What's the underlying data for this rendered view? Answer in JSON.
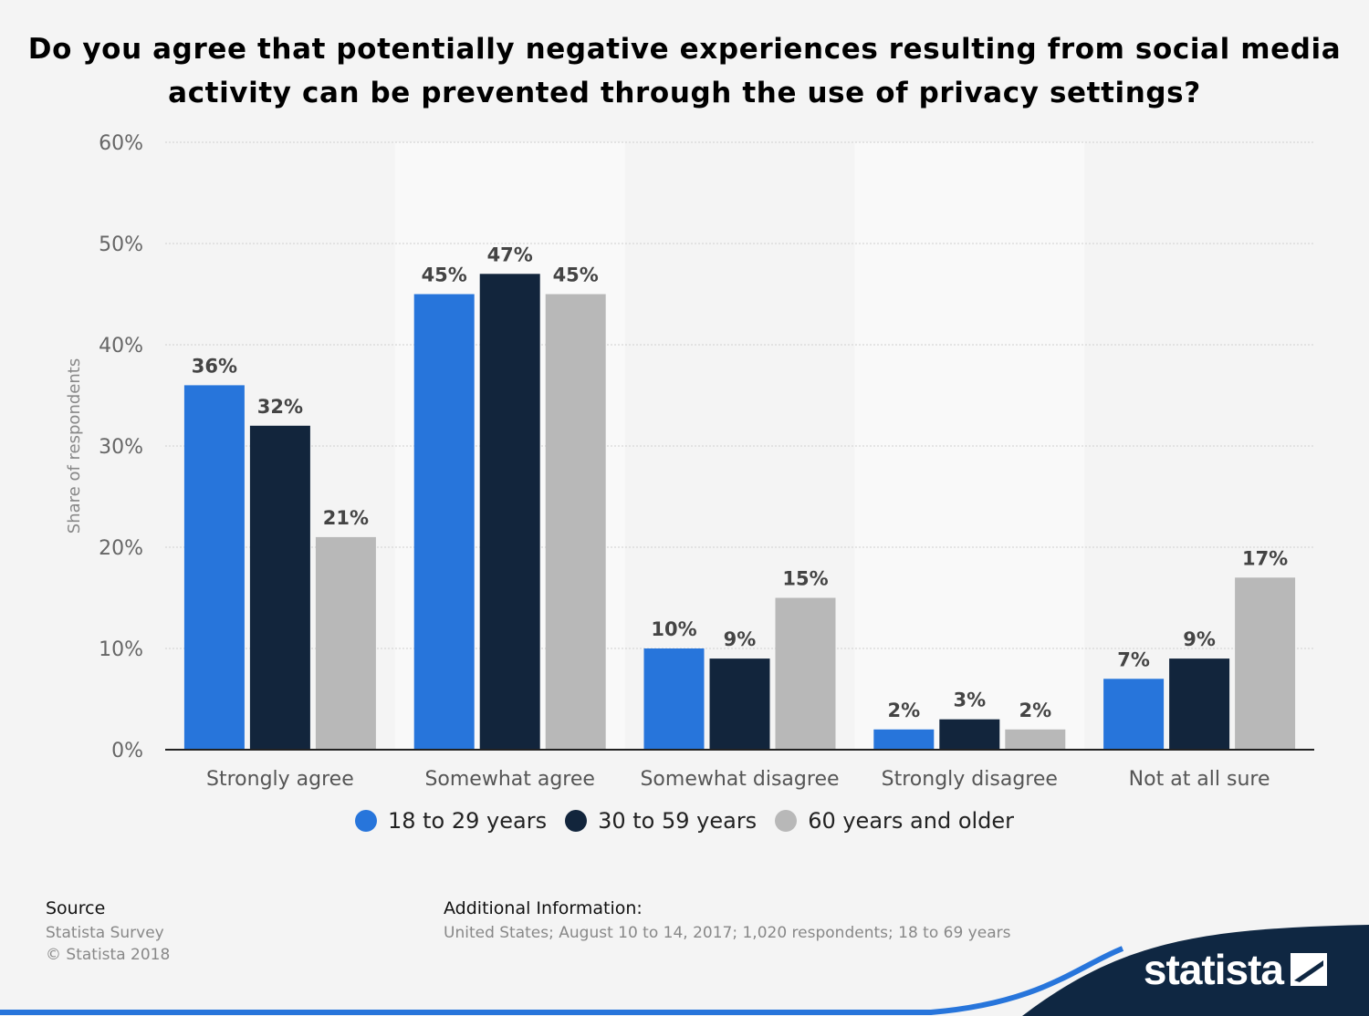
{
  "chart_data": {
    "type": "bar",
    "title": "Do you agree that potentially negative experiences resulting from social media activity can be prevented through the use of privacy settings?",
    "ylabel": "Share of respondents",
    "ylim": [
      0,
      60
    ],
    "yticks": [
      0,
      10,
      20,
      30,
      40,
      50,
      60
    ],
    "ytick_labels": [
      "0%",
      "10%",
      "20%",
      "30%",
      "40%",
      "50%",
      "60%"
    ],
    "grid": true,
    "legend_position": "bottom",
    "categories": [
      "Strongly agree",
      "Somewhat agree",
      "Somewhat disagree",
      "Strongly disagree",
      "Not at all sure"
    ],
    "series": [
      {
        "name": "18 to 29 years",
        "color": "#2775db",
        "values": [
          36,
          45,
          10,
          2,
          7
        ],
        "labels": [
          "36%",
          "45%",
          "10%",
          "2%",
          "7%"
        ]
      },
      {
        "name": "30 to 59 years",
        "color": "#12253c",
        "values": [
          32,
          47,
          9,
          3,
          9
        ],
        "labels": [
          "32%",
          "47%",
          "9%",
          "3%",
          "9%"
        ]
      },
      {
        "name": "60 years and older",
        "color": "#b8b8b8",
        "values": [
          21,
          45,
          15,
          2,
          17
        ],
        "labels": [
          "21%",
          "45%",
          "15%",
          "2%",
          "17%"
        ]
      }
    ]
  },
  "footer": {
    "source_heading": "Source",
    "source_line1": "Statista Survey",
    "source_line2": "© Statista 2018",
    "info_heading": "Additional Information:",
    "info_text": "United States; August 10 to 14, 2017; 1,020 respondents; 18 to 69 years"
  },
  "brand": {
    "name": "statista",
    "logo_icon": "statista-flag-icon",
    "wave_color": "#0f2742",
    "accent_color": "#2775db"
  }
}
